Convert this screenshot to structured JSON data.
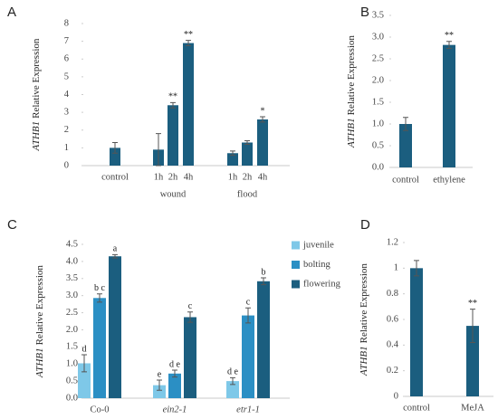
{
  "chart_data": [
    {
      "type": "bar",
      "panel_label": "A",
      "y_label_gene": "ATHB1",
      "y_label": "Relative Expression",
      "categories": [
        "control",
        "1h",
        "2h",
        "4h",
        "1h",
        "2h",
        "4h"
      ],
      "group_labels": [
        "wound",
        "flood"
      ],
      "values": [
        1.0,
        0.9,
        3.4,
        6.9,
        0.7,
        1.3,
        2.6
      ],
      "errors": [
        0.3,
        0.9,
        0.15,
        0.15,
        0.12,
        0.1,
        0.15
      ],
      "annotations": [
        null,
        null,
        "**",
        "**",
        null,
        null,
        "*"
      ],
      "color": "#1b5e7f",
      "ylim": [
        0,
        8
      ],
      "yticks": [
        0,
        1,
        2,
        3,
        4,
        5,
        6,
        7,
        8
      ]
    },
    {
      "type": "bar",
      "panel_label": "B",
      "y_label_gene": "ATHB1",
      "y_label": "Relative Expression",
      "categories": [
        "control",
        "ethylene"
      ],
      "values": [
        1.0,
        2.82
      ],
      "errors": [
        0.15,
        0.08
      ],
      "annotations": [
        null,
        "**"
      ],
      "color": "#1b5e7f",
      "ylim": [
        0,
        3.5
      ],
      "yticks": [
        {
          "value": 0,
          "label": "0.0"
        },
        0.5,
        {
          "value": 1,
          "label": "1.0"
        },
        1.5,
        {
          "value": 2,
          "label": "2.0"
        },
        2.5,
        {
          "value": 3,
          "label": "3.0"
        },
        3.5
      ]
    },
    {
      "type": "grouped-bar",
      "panel_label": "C",
      "y_label_gene": "ATHB1",
      "y_label": "Relative Expression",
      "categories": [
        "Co-0",
        "ein2-1",
        "etr1-1"
      ],
      "italic_categories": [
        false,
        true,
        true
      ],
      "series": [
        {
          "name": "juvenile",
          "color": "#7ec8e8",
          "values": [
            1.02,
            0.38,
            0.5
          ],
          "errors": [
            0.25,
            0.15,
            0.1
          ],
          "annotations": [
            "d",
            "e",
            "d e"
          ]
        },
        {
          "name": "bolting",
          "color": "#2b8fc4",
          "values": [
            2.93,
            0.72,
            2.42
          ],
          "errors": [
            0.12,
            0.1,
            0.22
          ],
          "annotations": [
            "b c",
            "d e",
            "c"
          ]
        },
        {
          "name": "flowering",
          "color": "#1b5e7f",
          "values": [
            4.15,
            2.37,
            3.42
          ],
          "errors": [
            0.05,
            0.15,
            0.1
          ],
          "annotations": [
            "a",
            "c",
            "b"
          ]
        }
      ],
      "ylim": [
        0,
        4.5
      ],
      "yticks": [
        {
          "value": 0,
          "label": "0.0"
        },
        0.5,
        {
          "value": 1,
          "label": "1.0"
        },
        1.5,
        {
          "value": 2,
          "label": "2.0"
        },
        2.5,
        {
          "value": 3,
          "label": "3.0"
        },
        3.5,
        {
          "value": 4,
          "label": "4.0"
        },
        4.5
      ],
      "legend": "right"
    },
    {
      "type": "bar",
      "panel_label": "D",
      "y_label_gene": "ATHB1",
      "y_label": "Relative Expression",
      "categories": [
        "control",
        "MeJA"
      ],
      "values": [
        1.0,
        0.55
      ],
      "errors": [
        0.06,
        0.13
      ],
      "annotations": [
        null,
        "**"
      ],
      "color": "#1b5e7f",
      "ylim": [
        0,
        1.2
      ],
      "yticks": [
        0,
        0.2,
        0.4,
        0.6,
        0.8,
        1,
        1.2
      ]
    }
  ]
}
